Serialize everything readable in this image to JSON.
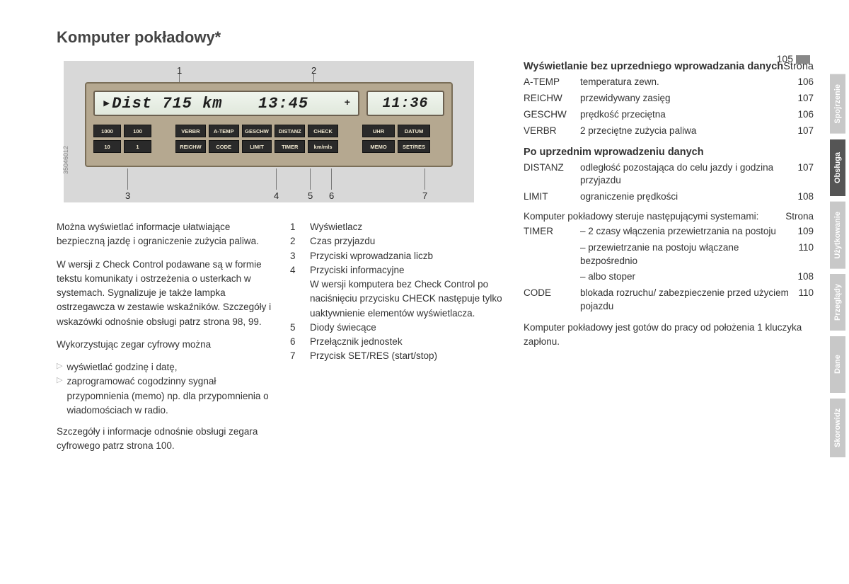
{
  "title": "Komputer pokładowy*",
  "page_number": "105",
  "device": {
    "ref_code": "35046012",
    "lcd_main_left": "▸Dist  715 km",
    "lcd_main_right": "13:45",
    "lcd_main_plus": "+",
    "lcd_side": "11:36",
    "numpad": [
      "1000",
      "100",
      "10",
      "1"
    ],
    "info": [
      "VERBR",
      "A-TEMP",
      "GESCHW",
      "DISTANZ",
      "CHECK",
      "REICHW",
      "CODE",
      "LIMIT",
      "TIMER",
      "km/mls"
    ],
    "clock": [
      "UHR",
      "DATUM",
      "MEMO",
      "SET/RES"
    ],
    "callouts": {
      "c1": "1",
      "c2": "2",
      "c3": "3",
      "c4": "4",
      "c5": "5",
      "c6": "6",
      "c7": "7"
    }
  },
  "left_paras": [
    "Można wyświetlać informacje ułatwiające bezpieczną jazdę i ograniczenie zużycia paliwa.",
    "W wersji z Check Control podawane są w formie tekstu komunikaty i ostrzeżenia o usterkach w systemach. Sygnalizuje je także lampka ostrzegawcza w zestawie wskaźników. Szczegóły i wskazówki odnośnie obsługi patrz strona 98, 99.",
    "Wykorzystując zegar cyfrowy można"
  ],
  "left_bullets": [
    "wyświetlać godzinę i datę,",
    "zaprogramować cogodzinny sygnał przypomnienia (memo) np. dla przypomnienia o wiadomościach w radio."
  ],
  "left_after": "Szczegóły i informacje odnośnie obsługi zegara cyfrowego patrz strona 100.",
  "numbered": [
    {
      "n": "1",
      "t": "Wyświetlacz"
    },
    {
      "n": "2",
      "t": "Czas przyjazdu"
    },
    {
      "n": "3",
      "t": "Przyciski wprowadzania liczb"
    },
    {
      "n": "4",
      "t": "Przyciski informacyjne\nW wersji komputera bez Check Control po naciśnięciu przycisku CHECK następuje tylko uaktywnienie elementów wyświetlacza."
    },
    {
      "n": "5",
      "t": "Diody świecące"
    },
    {
      "n": "6",
      "t": "Przełącznik jednostek"
    },
    {
      "n": "7",
      "t": "Przycisk SET/RES (start/stop)"
    }
  ],
  "right": {
    "sec1_head": "Wyświetlanie bez uprzedniego wprowadzania danych",
    "strona": "Strona",
    "sec1_rows": [
      {
        "k": "A-TEMP",
        "v": "temperatura zewn.",
        "p": "106"
      },
      {
        "k": "REICHW",
        "v": "przewidywany zasięg",
        "p": "107"
      },
      {
        "k": "GESCHW",
        "v": "prędkość przeciętna",
        "p": "106"
      },
      {
        "k": "VERBR",
        "v": "2 przeciętne zużycia paliwa",
        "p": "107"
      }
    ],
    "sec2_head": "Po uprzednim wprowadzeniu danych",
    "sec2_rows": [
      {
        "k": "DISTANZ",
        "v": "odległość pozostająca do celu jazdy i godzina przyjazdu",
        "p": "107"
      },
      {
        "k": "LIMIT",
        "v": "ograniczenie prędkości",
        "p": "108"
      }
    ],
    "sec3_note": "Komputer pokładowy steruje następującymi systemami:",
    "sec3_rows": [
      {
        "k": "TIMER",
        "v": "– 2 czasy włączenia przewietrzania na postoju",
        "p": "109"
      },
      {
        "k": "",
        "v": "– przewietrzanie na postoju włączane bezpośrednio",
        "p": "110"
      },
      {
        "k": "",
        "v": "– albo stoper",
        "p": "108"
      },
      {
        "k": "CODE",
        "v": "blokada rozruchu/ zabezpieczenie przed użyciem pojazdu",
        "p": "110"
      }
    ],
    "footer": "Komputer pokładowy jest gotów do pracy od położenia 1 kluczyka zapłonu."
  },
  "tabs": [
    {
      "label": "Spojrzenie",
      "bg": "#c8c8c8"
    },
    {
      "label": "Obsługa",
      "bg": "#555555"
    },
    {
      "label": "Użytkowanie",
      "bg": "#c8c8c8"
    },
    {
      "label": "Przeglądy",
      "bg": "#c8c8c8"
    },
    {
      "label": "Dane",
      "bg": "#c8c8c8"
    },
    {
      "label": "Skorowidz",
      "bg": "#c8c8c8"
    }
  ]
}
